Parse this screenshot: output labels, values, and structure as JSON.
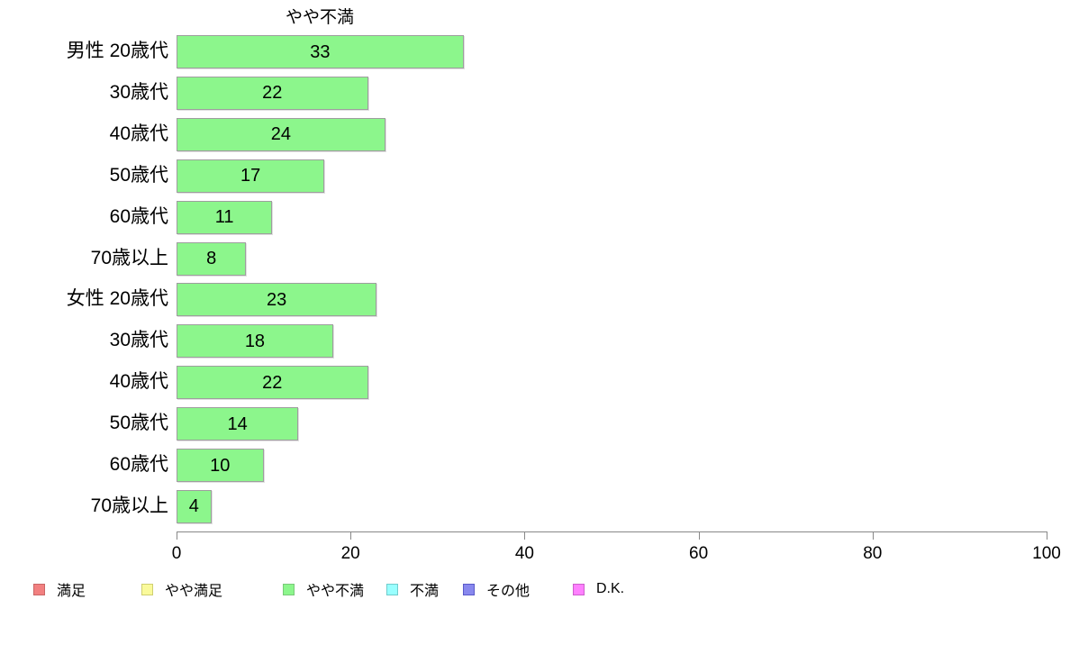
{
  "chart_data": {
    "type": "bar",
    "orientation": "horizontal",
    "title": "やや不満",
    "categories": [
      "男性 20歳代",
      "30歳代",
      "40歳代",
      "50歳代",
      "60歳代",
      "70歳以上",
      "女性 20歳代",
      "30歳代",
      "40歳代",
      "50歳代",
      "60歳代",
      "70歳以上"
    ],
    "values": [
      33,
      22,
      24,
      17,
      11,
      8,
      23,
      18,
      22,
      14,
      10,
      4
    ],
    "xlabel": "",
    "ylabel": "",
    "xlim": [
      0,
      100
    ],
    "x_ticks": [
      0,
      20,
      40,
      60,
      80,
      100
    ],
    "grid": false,
    "bar_fill_color": "#8cf68c",
    "bar_border_color": "#9e9e9e",
    "axis_color": "#888888",
    "legend_position": "bottom"
  },
  "legend": {
    "items": [
      {
        "label": "満足",
        "color": "#f28080",
        "border": "#c96666"
      },
      {
        "label": "やや満足",
        "color": "#fafa9b",
        "border": "#cfcf70"
      },
      {
        "label": "やや不満",
        "color": "#8cf68c",
        "border": "#79c979"
      },
      {
        "label": "不満",
        "color": "#99ffff",
        "border": "#70cccc"
      },
      {
        "label": "その他",
        "color": "#8888ee",
        "border": "#5a5ac9"
      },
      {
        "label": "D.K.",
        "color": "#ff80ff",
        "border": "#cc5fcc"
      }
    ]
  }
}
